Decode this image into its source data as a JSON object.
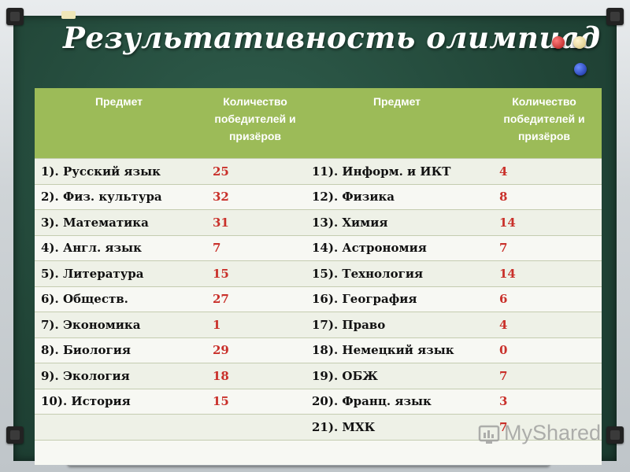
{
  "title": "Результативность олимпиад",
  "headers": {
    "subject_left": "Предмет",
    "count_left": "Количество победителей и призёров",
    "subject_right": "Предмет",
    "count_right": "Количество победителей и призёров"
  },
  "rows": [
    {
      "left_subject": "1). Русский язык",
      "left_count": "25",
      "right_subject": "11). Информ. и ИКТ",
      "right_count": "4"
    },
    {
      "left_subject": "2). Физ. культура",
      "left_count": "32",
      "right_subject": "12). Физика",
      "right_count": "8"
    },
    {
      "left_subject": "3). Математика",
      "left_count": "31",
      "right_subject": "13). Химия",
      "right_count": "14"
    },
    {
      "left_subject": "4). Англ. язык",
      "left_count": "7",
      "right_subject": "14). Астрономия",
      "right_count": "7"
    },
    {
      "left_subject": "5). Литература",
      "left_count": "15",
      "right_subject": "15). Технология",
      "right_count": "14"
    },
    {
      "left_subject": "6). Обществ.",
      "left_count": "27",
      "right_subject": "16). География",
      "right_count": "6"
    },
    {
      "left_subject": "7).  Экономика",
      "left_count": "1",
      "right_subject": "17). Право",
      "right_count": "4"
    },
    {
      "left_subject": "8). Биология",
      "left_count": "29",
      "right_subject": "18). Немецкий язык",
      "right_count": "0"
    },
    {
      "left_subject": "9). Экология",
      "left_count": "18",
      "right_subject": "19).  ОБЖ",
      "right_count": "7"
    },
    {
      "left_subject": "10). История",
      "left_count": "15",
      "right_subject": "20). Франц. язык",
      "right_count": "3"
    },
    {
      "left_subject": "",
      "left_count": "",
      "right_subject": "21). МХК",
      "right_count": "7"
    },
    {
      "left_subject": "",
      "left_count": "",
      "right_subject": "",
      "right_count": ""
    }
  ],
  "watermark": "MyShared",
  "colors": {
    "board": "#214537",
    "header_bg": "#9cbb58",
    "count_text": "#c9302a",
    "row_odd": "#eef1e7",
    "row_even": "#f7f8f3"
  }
}
